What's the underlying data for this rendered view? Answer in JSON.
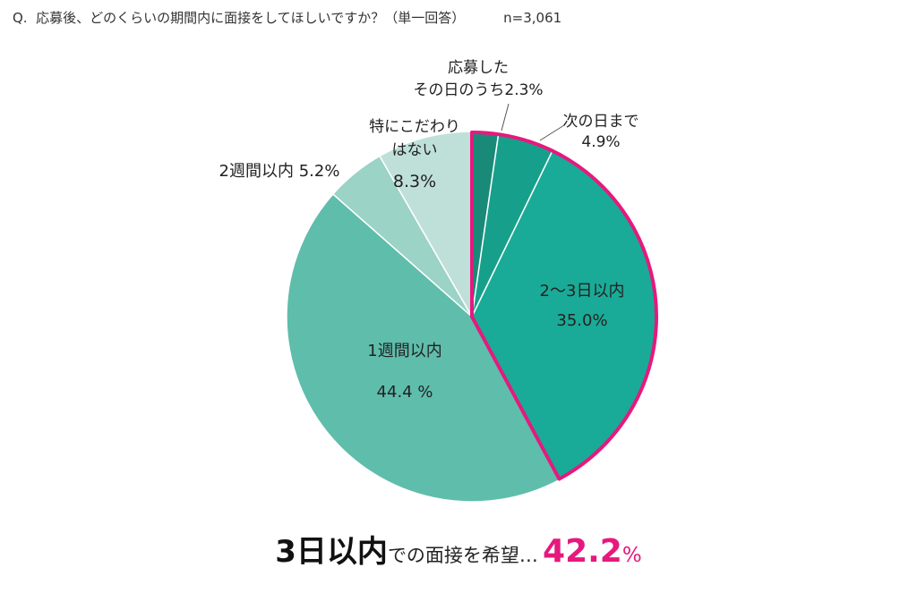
{
  "question": {
    "text": "Q.  応募後、どのくらいの期間内に面接をしてほしいですか？（単一回答）",
    "n": "n=3,061"
  },
  "chart_data": {
    "type": "pie",
    "start": "top, clockwise",
    "slices": [
      {
        "label": "応募したその日のうち",
        "value": 2.3,
        "display": "2.3%",
        "label_lines": [
          "応募した",
          "その日のうち2.3%"
        ],
        "color": "#1a8a78"
      },
      {
        "label": "次の日まで",
        "value": 4.9,
        "display": "4.9%",
        "label_lines": [
          "次の日まで",
          "4.9%"
        ],
        "color": "#16a08c"
      },
      {
        "label": "2～3日以内",
        "value": 35.0,
        "display": "35.0%",
        "label_lines": [
          "2～3日以内",
          "35.0%"
        ],
        "color": "#19ab97"
      },
      {
        "label": "1週間以内",
        "value": 44.4,
        "display": "44.4 %",
        "label_lines": [
          "1週間以内",
          "44.4 %"
        ],
        "color": "#5fbdab"
      },
      {
        "label": "2週間以内",
        "value": 5.2,
        "display": "5.2%",
        "label_lines": [
          "2週間以内  5.2%"
        ],
        "color": "#9bd3c6"
      },
      {
        "label": "特にこだわりはない",
        "value": 8.3,
        "display": "8.3%",
        "label_lines": [
          "特にこだわり",
          "はない",
          "8.3%"
        ],
        "color": "#bfe0d8"
      }
    ],
    "highlight": {
      "slices": [
        "応募したその日のうち",
        "次の日まで",
        "2～3日以内"
      ],
      "outline_color": "#e5197e"
    }
  },
  "headline": {
    "big": "3日以内",
    "mid": "での面接を希望…",
    "num": "42.2",
    "pct": "%"
  }
}
